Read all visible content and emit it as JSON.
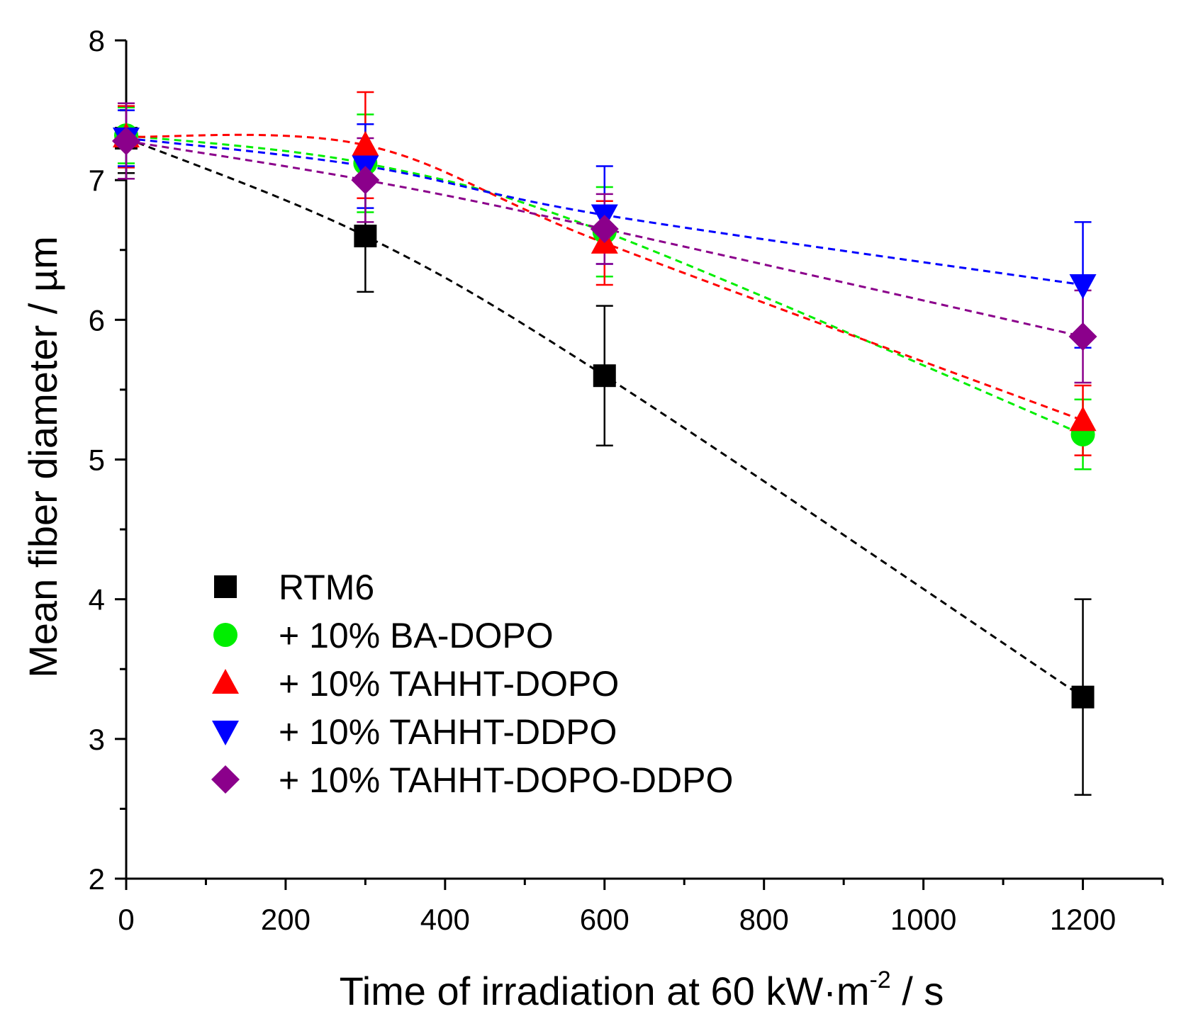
{
  "chart_data": {
    "type": "scatter",
    "title": "",
    "xlabel": {
      "main": "Time of irradiation at 60 kW·m",
      "superscript": "-2",
      "suffix": " / s"
    },
    "ylabel": "Mean fiber diameter / µm",
    "xlim": [
      0,
      1300
    ],
    "ylim": [
      2,
      8
    ],
    "xticks": [
      0,
      200,
      400,
      600,
      800,
      1000,
      1200
    ],
    "xticks_minor": [
      100,
      300,
      500,
      700,
      900,
      1100,
      1300
    ],
    "yticks": [
      2,
      3,
      4,
      5,
      6,
      7,
      8
    ],
    "yticks_minor": [
      2.5,
      3.5,
      4.5,
      5.5,
      6.5,
      7.5
    ],
    "xtick_labels": [
      "0",
      "200",
      "400",
      "600",
      "800",
      "1000",
      "1200"
    ],
    "ytick_labels": [
      "2",
      "3",
      "4",
      "5",
      "6",
      "7",
      "8"
    ],
    "grid": false,
    "legend_position": "lower-left",
    "x": [
      0,
      300,
      600,
      1200
    ],
    "series": [
      {
        "name": "RTM6",
        "marker": "square",
        "color": "#000000",
        "values": [
          7.3,
          6.6,
          5.6,
          3.3
        ],
        "errors": [
          0.25,
          0.4,
          0.5,
          0.7
        ],
        "trend": "dashed"
      },
      {
        "name": "+ 10% BA-DOPO",
        "marker": "circle",
        "color": "#00ee00",
        "values": [
          7.32,
          7.12,
          6.63,
          5.18
        ],
        "errors": [
          0.2,
          0.35,
          0.32,
          0.25
        ],
        "trend": "dashed"
      },
      {
        "name": "+ 10% TAHHT-DOPO",
        "marker": "triangle-up",
        "color": "#ff0000",
        "values": [
          7.31,
          7.25,
          6.55,
          5.28
        ],
        "errors": [
          0.22,
          0.38,
          0.3,
          0.25
        ],
        "trend": "dashed"
      },
      {
        "name": "+ 10% TAHHT-DDPO",
        "marker": "triangle-down",
        "color": "#0000ff",
        "values": [
          7.3,
          7.1,
          6.75,
          6.25
        ],
        "errors": [
          0.2,
          0.3,
          0.35,
          0.45
        ],
        "trend": "dashed"
      },
      {
        "name": "+ 10% TAHHT-DOPO-DDPO",
        "marker": "diamond",
        "color": "#8b008b",
        "values": [
          7.28,
          7.0,
          6.65,
          5.88
        ],
        "errors": [
          0.27,
          0.3,
          0.25,
          0.33
        ],
        "trend": "dashed"
      }
    ]
  }
}
